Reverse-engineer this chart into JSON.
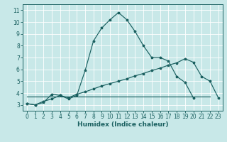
{
  "xlabel": "Humidex (Indice chaleur)",
  "xlim": [
    -0.5,
    23.5
  ],
  "ylim": [
    2.5,
    11.5
  ],
  "xticks": [
    0,
    1,
    2,
    3,
    4,
    5,
    6,
    7,
    8,
    9,
    10,
    11,
    12,
    13,
    14,
    15,
    16,
    17,
    18,
    19,
    20,
    21,
    22,
    23
  ],
  "yticks": [
    3,
    4,
    5,
    6,
    7,
    8,
    9,
    10,
    11
  ],
  "bg_color": "#c8e8e8",
  "line_color": "#1a6060",
  "grid_color": "#ffffff",
  "line1_x": [
    0,
    1,
    2,
    3,
    4,
    5,
    6,
    7,
    8,
    9,
    10,
    11,
    12,
    13,
    14,
    15,
    16,
    17,
    18,
    19,
    20,
    21,
    22
  ],
  "line1_y": [
    3.1,
    3.0,
    3.2,
    3.9,
    3.8,
    3.5,
    3.8,
    5.9,
    8.4,
    9.5,
    10.2,
    10.8,
    10.2,
    9.2,
    8.0,
    7.0,
    7.0,
    6.7,
    5.4,
    4.9,
    3.6,
    null,
    null
  ],
  "line2_x": [
    0,
    1,
    2,
    3,
    4,
    5,
    6,
    7,
    8,
    9,
    10,
    11,
    12,
    13,
    14,
    15,
    16,
    17,
    18,
    19,
    20,
    21,
    22,
    23
  ],
  "line2_y": [
    3.1,
    3.0,
    3.3,
    3.5,
    3.8,
    3.6,
    3.9,
    4.1,
    4.35,
    4.6,
    4.8,
    5.0,
    5.2,
    5.45,
    5.65,
    5.9,
    6.1,
    6.35,
    6.55,
    6.9,
    6.6,
    5.4,
    5.0,
    3.6
  ],
  "line3_x": [
    0,
    22
  ],
  "line3_y": [
    3.7,
    3.7
  ],
  "xlabel_fontsize": 6.5,
  "tick_fontsize": 5.5
}
